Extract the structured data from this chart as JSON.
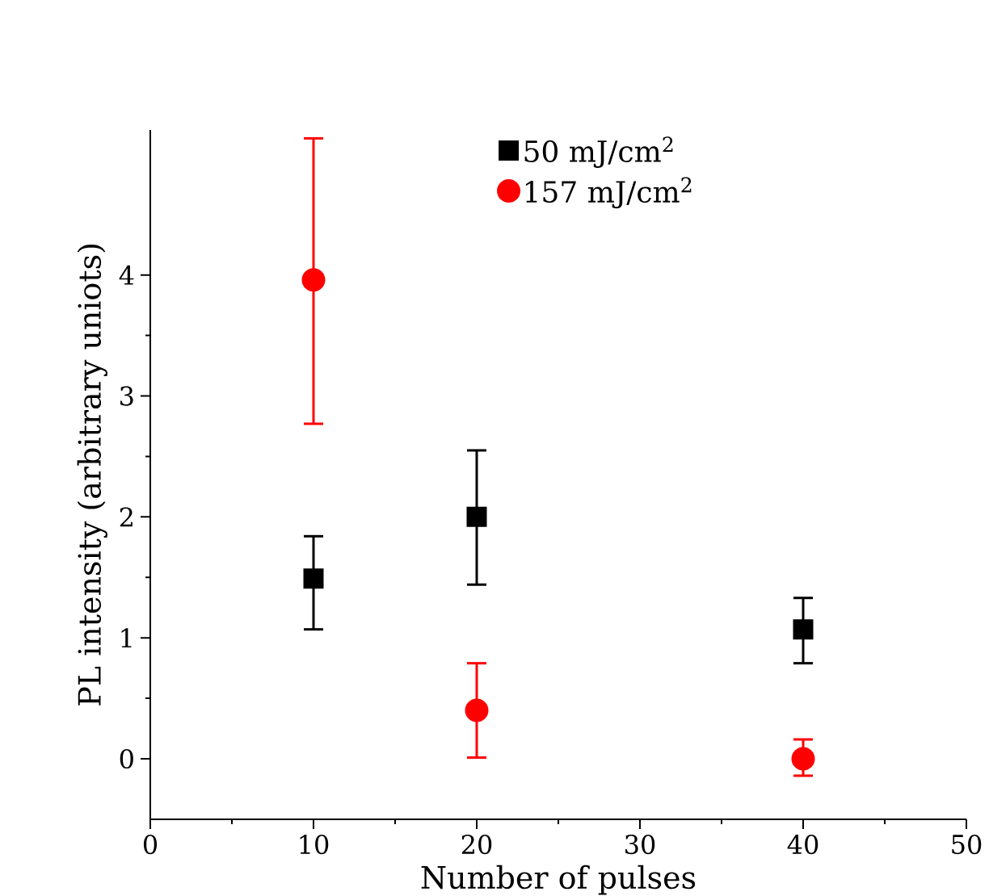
{
  "chart_data": {
    "type": "scatter",
    "xlabel": "Number of pulses",
    "ylabel": "PL intensity (arbitrary uniots)",
    "xlim": [
      0,
      50
    ],
    "xticks": [
      0,
      10,
      20,
      30,
      40,
      50
    ],
    "ylim": [
      -0.5,
      5.2
    ],
    "yticks": [
      0,
      1,
      2,
      3,
      4
    ],
    "legend": "top",
    "grid": false,
    "series": [
      {
        "name": "50 mJ/cm$^{2}$",
        "color": "#000000",
        "marker": "square",
        "x": [
          10,
          20,
          40
        ],
        "values": [
          1.49,
          2.0,
          1.07
        ],
        "errors": [
          [
            1.07,
            1.84
          ],
          [
            1.44,
            2.55
          ],
          [
            0.79,
            1.33
          ]
        ]
      },
      {
        "name": "157 mJ/cm$^{2}$",
        "color": "#ff0000",
        "marker": "circle",
        "x": [
          10,
          20,
          40
        ],
        "values": [
          3.96,
          0.4,
          0.0
        ],
        "errors": [
          [
            2.77,
            5.13
          ],
          [
            0.01,
            0.79
          ],
          [
            -0.14,
            0.16
          ]
        ]
      }
    ]
  }
}
